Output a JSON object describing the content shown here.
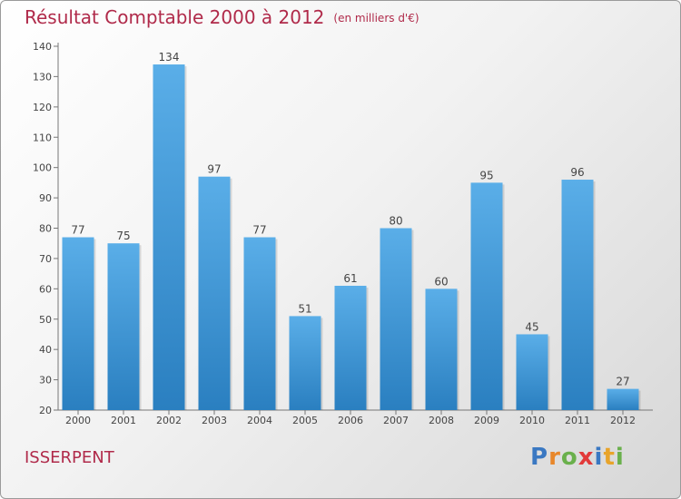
{
  "title": "Résultat Comptable 2000 à 2012",
  "unit": "(en milliers d'€)",
  "commune": "ISSERPENT",
  "brand": {
    "letters": [
      "P",
      "r",
      "o",
      "x",
      "i",
      "t",
      "i"
    ],
    "colors": [
      "#3a78c2",
      "#e8872a",
      "#6ab04c",
      "#e23a3a",
      "#3a78c2",
      "#e8a42a",
      "#6ab04c"
    ]
  },
  "colors": {
    "bar_light": "#5aaee8",
    "bar_dark": "#2a7fc0",
    "title": "#b02a4a"
  },
  "chart_data": {
    "type": "bar",
    "title": "Résultat Comptable 2000 à 2012",
    "xlabel": "",
    "ylabel": "",
    "categories": [
      "2000",
      "2001",
      "2002",
      "2003",
      "2004",
      "2005",
      "2006",
      "2007",
      "2008",
      "2009",
      "2010",
      "2011",
      "2012"
    ],
    "values": [
      77,
      75,
      134,
      97,
      77,
      51,
      61,
      80,
      60,
      95,
      45,
      96,
      27
    ],
    "ylim": [
      20,
      140
    ],
    "yticks": [
      20,
      30,
      40,
      50,
      60,
      70,
      80,
      90,
      100,
      110,
      120,
      130,
      140
    ],
    "grid": false,
    "data_labels": true
  }
}
